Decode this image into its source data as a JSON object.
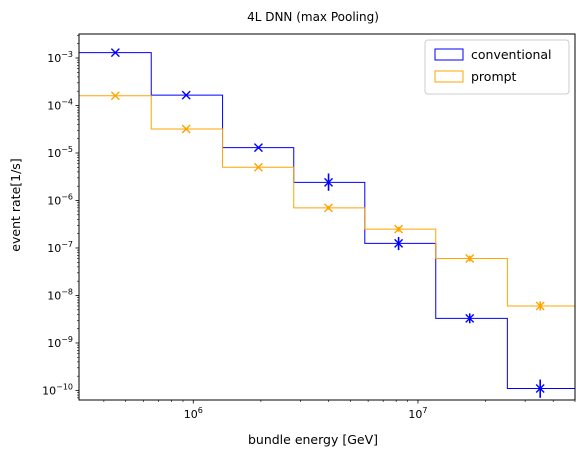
{
  "chart_data": {
    "type": "histogram-step",
    "title": "4L DNN (max Pooling)",
    "xlabel": "bundle energy [GeV]",
    "ylabel": "event rate[1/s]",
    "xscale": "log",
    "yscale": "log",
    "xlim": [
      310000,
      50000000
    ],
    "ylim": [
      6.3e-11,
      0.0032
    ],
    "x_tick_labels": [
      {
        "value": 1000000,
        "label": "10^6"
      },
      {
        "value": 10000000,
        "label": "10^7"
      }
    ],
    "y_tick_labels": [
      {
        "value": 0.001,
        "label": "10^-3"
      },
      {
        "value": 0.0001,
        "label": "10^-4"
      },
      {
        "value": 1e-05,
        "label": "10^-5"
      },
      {
        "value": 1e-06,
        "label": "10^-6"
      },
      {
        "value": 1e-07,
        "label": "10^-7"
      },
      {
        "value": 1e-08,
        "label": "10^-8"
      },
      {
        "value": 1e-09,
        "label": "10^-9"
      },
      {
        "value": 1e-10,
        "label": "10^-10"
      }
    ],
    "bin_edges": [
      310000,
      650000,
      1350000,
      2800000,
      5800000,
      12000000,
      25000000,
      50000000
    ],
    "bin_centers": [
      450000,
      930000,
      1950000,
      4000000,
      8200000,
      17000000,
      35000000
    ],
    "legend_position": "top-right",
    "series": [
      {
        "name": "conventional",
        "color": "#0000ff",
        "values": [
          0.0013,
          0.000165,
          1.3e-05,
          2.4e-06,
          1.25e-07,
          3.3e-09,
          1.1e-10
        ],
        "err_low": [
          0.00125,
          0.000158,
          1.22e-05,
          1.6e-06,
          9e-08,
          2.6e-09,
          7e-11
        ],
        "err_high": [
          0.00135,
          0.000172,
          1.38e-05,
          3.7e-06,
          1.7e-07,
          4.2e-09,
          1.7e-10
        ]
      },
      {
        "name": "prompt",
        "color": "#ffa500",
        "values": [
          0.00016,
          3.2e-05,
          5e-06,
          7e-07,
          2.5e-07,
          6e-08,
          6e-09
        ],
        "err_low": [
          0.000155,
          3e-05,
          4.7e-06,
          6.4e-07,
          2.2e-07,
          5.2e-08,
          4.8e-09
        ],
        "err_high": [
          0.000165,
          3.4e-05,
          5.3e-06,
          7.7e-07,
          2.8e-07,
          6.9e-08,
          7.5e-09
        ]
      }
    ]
  }
}
